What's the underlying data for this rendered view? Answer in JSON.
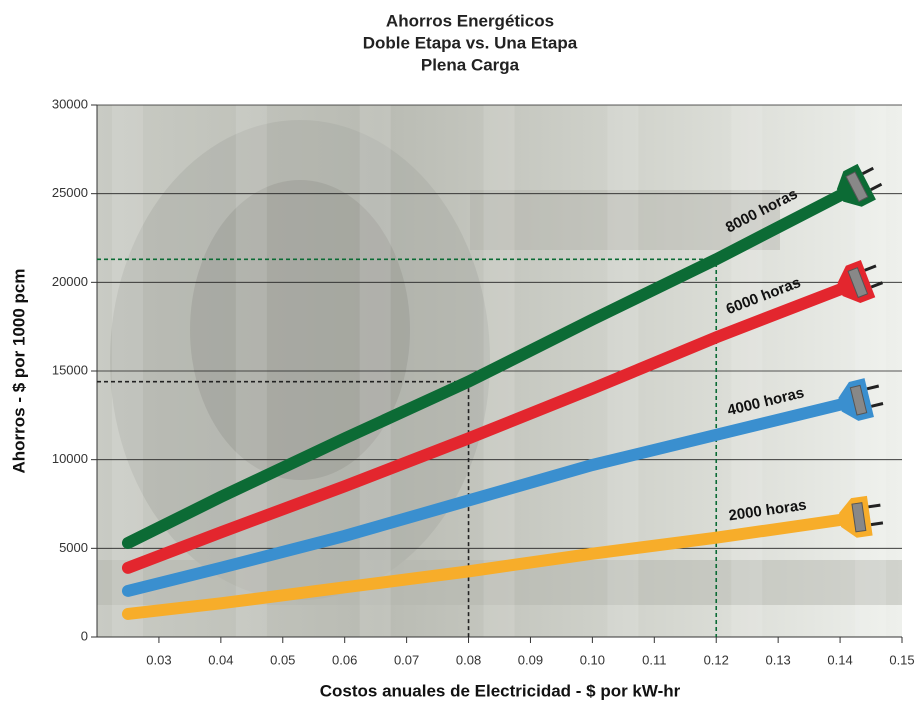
{
  "chart_data": {
    "type": "line",
    "title": [
      "Ahorros Energéticos",
      "Doble Etapa vs. Una Etapa",
      "Plena Carga"
    ],
    "x_label": "Costos anuales de Electricidad - $ por kW-hr",
    "y_label": "Ahorros - $ por 1000 pcm",
    "x": [
      0.025,
      0.04,
      0.06,
      0.08,
      0.1,
      0.12,
      0.14
    ],
    "series": [
      {
        "name": "8000 horas",
        "color": "#0c6b35",
        "values": [
          5300,
          7900,
          11200,
          14400,
          17900,
          21300,
          24900
        ]
      },
      {
        "name": "6000 horas",
        "color": "#e3262e",
        "values": [
          3900,
          5900,
          8500,
          11200,
          14000,
          16900,
          19600
        ]
      },
      {
        "name": "4000 horas",
        "color": "#3a8fcf",
        "values": [
          2600,
          3900,
          5700,
          7700,
          9700,
          11400,
          13100
        ]
      },
      {
        "name": "2000 horas",
        "color": "#f7ad2a",
        "values": [
          1300,
          1900,
          2800,
          3700,
          4700,
          5600,
          6600
        ]
      }
    ],
    "reference_lines": [
      {
        "x": 0.08,
        "y": 14400,
        "color": "#222222"
      },
      {
        "x": 0.12,
        "y": 21300,
        "color": "#0c6b35"
      }
    ],
    "xlim": [
      0.02,
      0.15
    ],
    "xticks": [
      0.03,
      0.04,
      0.05,
      0.06,
      0.07,
      0.08,
      0.09,
      {
        "value": 0.1,
        "label": "0.10"
      },
      0.11,
      0.12,
      0.13,
      0.14,
      0.15
    ],
    "ylim": [
      0,
      30000
    ],
    "yticks": [
      0,
      5000,
      10000,
      15000,
      20000,
      25000,
      30000
    ],
    "grid": true
  }
}
